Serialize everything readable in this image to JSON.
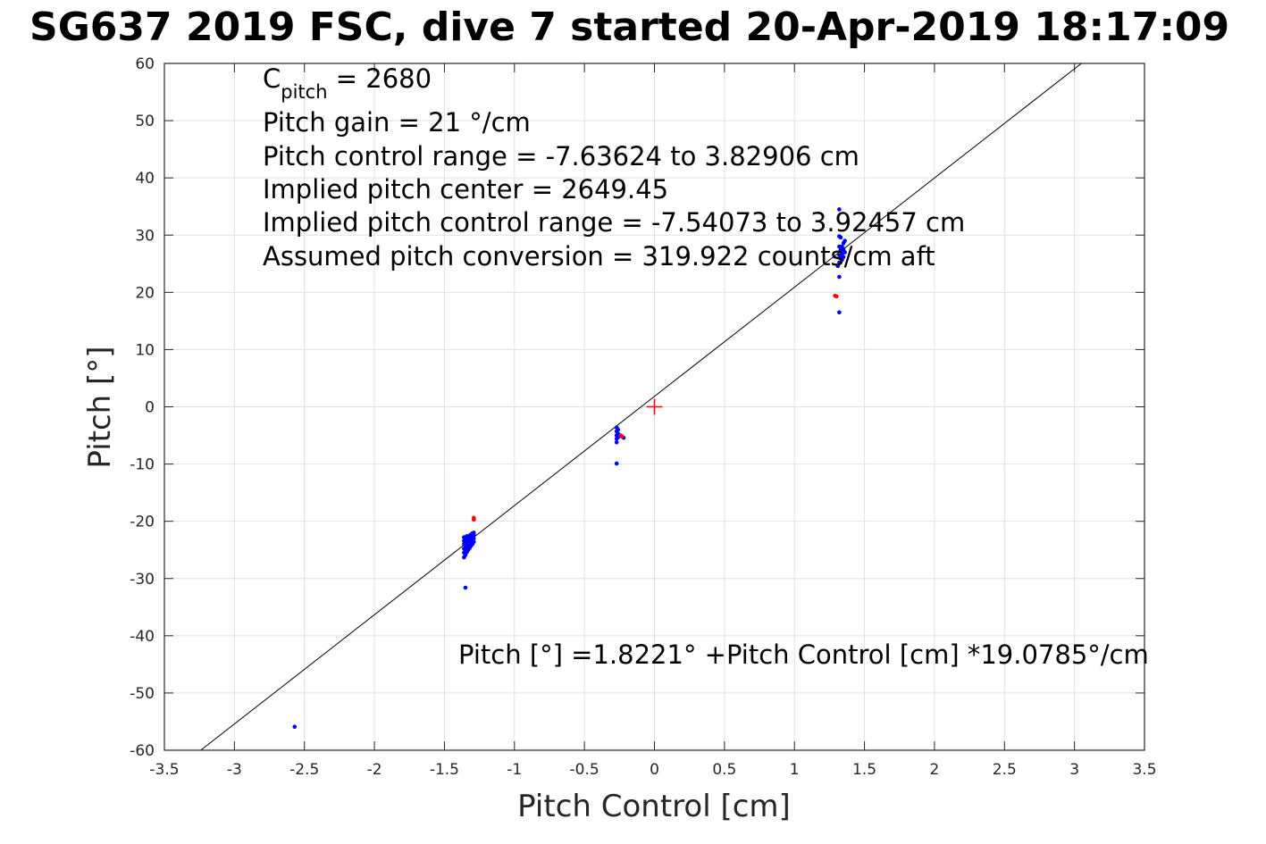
{
  "chart_data": {
    "type": "scatter",
    "title": "SG637 2019 FSC, dive 7 started 20-Apr-2019 18:17:09",
    "xlabel": "Pitch Control [cm]",
    "ylabel": "Pitch [°]",
    "xlim": [
      -3.5,
      3.5
    ],
    "ylim": [
      -60,
      60
    ],
    "xticks": [
      -3.5,
      -3,
      -2.5,
      -2,
      -1.5,
      -1,
      -0.5,
      0,
      0.5,
      1,
      1.5,
      2,
      2.5,
      3,
      3.5
    ],
    "yticks": [
      -60,
      -50,
      -40,
      -30,
      -20,
      -10,
      0,
      10,
      20,
      30,
      40,
      50,
      60
    ],
    "xtick_labels": [
      "-3.5",
      "-3",
      "-2.5",
      "-2",
      "-1.5",
      "-1",
      "-0.5",
      "0",
      "0.5",
      "1",
      "1.5",
      "2",
      "2.5",
      "3",
      "3.5"
    ],
    "ytick_labels": [
      "-60",
      "-50",
      "-40",
      "-30",
      "-20",
      "-10",
      "0",
      "10",
      "20",
      "30",
      "40",
      "50",
      "60"
    ],
    "grid": true,
    "annotations": {
      "c_pitch_main": "C",
      "c_pitch_sub": "pitch",
      "c_pitch_value": " = 2680",
      "lines": [
        "Pitch gain = 21 °/cm",
        "Pitch control range = -7.63624 to 3.82906 cm",
        "Implied pitch center = 2649.45",
        "Implied pitch control range = -7.54073 to 3.92457 cm",
        "Assumed pitch conversion = 319.922 counts/cm aft"
      ],
      "fit_text": "Pitch [°] =1.8221° +Pitch Control [cm] *19.0785°/cm"
    },
    "fit_line": {
      "intercept": 1.8221,
      "slope": 19.0785,
      "color": "#000000"
    },
    "center_marker": {
      "x": 0,
      "y": 0,
      "color": "#ff0000"
    },
    "series": [
      {
        "color": "#0000ff",
        "points": [
          [
            -2.57,
            -55.9
          ],
          [
            -1.35,
            -31.6
          ],
          [
            -1.36,
            -26.3
          ],
          [
            -1.36,
            -25.5
          ],
          [
            -1.36,
            -24.8
          ],
          [
            -1.36,
            -24.0
          ],
          [
            -1.36,
            -23.4
          ],
          [
            -1.36,
            -22.8
          ],
          [
            -1.35,
            -25.9
          ],
          [
            -1.35,
            -25.1
          ],
          [
            -1.35,
            -24.4
          ],
          [
            -1.35,
            -23.7
          ],
          [
            -1.35,
            -23.0
          ],
          [
            -1.34,
            -25.4
          ],
          [
            -1.34,
            -24.6
          ],
          [
            -1.34,
            -23.9
          ],
          [
            -1.34,
            -23.2
          ],
          [
            -1.34,
            -22.6
          ],
          [
            -1.33,
            -25.0
          ],
          [
            -1.33,
            -24.2
          ],
          [
            -1.33,
            -23.5
          ],
          [
            -1.33,
            -22.8
          ],
          [
            -1.32,
            -24.7
          ],
          [
            -1.32,
            -23.9
          ],
          [
            -1.32,
            -23.2
          ],
          [
            -1.32,
            -22.5
          ],
          [
            -1.31,
            -24.3
          ],
          [
            -1.31,
            -23.6
          ],
          [
            -1.31,
            -22.9
          ],
          [
            -1.31,
            -22.3
          ],
          [
            -1.3,
            -24.0
          ],
          [
            -1.3,
            -23.3
          ],
          [
            -1.3,
            -22.6
          ],
          [
            -1.3,
            -22.1
          ],
          [
            -1.29,
            -23.6
          ],
          [
            -1.29,
            -23.0
          ],
          [
            -1.29,
            -22.4
          ],
          [
            -1.29,
            -22.0
          ],
          [
            -0.27,
            -3.6
          ],
          [
            -0.27,
            -4.3
          ],
          [
            -0.27,
            -5.0
          ],
          [
            -0.27,
            -5.6
          ],
          [
            -0.27,
            -6.2
          ],
          [
            -0.27,
            -9.9
          ],
          [
            -0.26,
            -4.0
          ],
          [
            -0.26,
            -4.7
          ],
          [
            -0.26,
            -5.3
          ],
          [
            -0.25,
            -5.1
          ],
          [
            -0.23,
            -5.2
          ],
          [
            -0.22,
            -5.4
          ],
          [
            1.32,
            34.5
          ],
          [
            1.32,
            29.8
          ],
          [
            1.32,
            28.0
          ],
          [
            1.32,
            26.5
          ],
          [
            1.32,
            25.2
          ],
          [
            1.32,
            22.7
          ],
          [
            1.32,
            16.5
          ],
          [
            1.31,
            24.6
          ],
          [
            1.33,
            27.4
          ],
          [
            1.33,
            26.3
          ],
          [
            1.33,
            29.6
          ],
          [
            1.34,
            28.0
          ],
          [
            1.34,
            26.8
          ],
          [
            1.34,
            25.7
          ],
          [
            1.35,
            27.5
          ],
          [
            1.35,
            26.2
          ],
          [
            1.35,
            28.6
          ],
          [
            1.36,
            27.0
          ],
          [
            1.36,
            29.0
          ]
        ]
      },
      {
        "color": "#ff0000",
        "points": [
          [
            -1.29,
            -19.4
          ],
          [
            -1.29,
            -19.7
          ],
          [
            -0.24,
            -5.0
          ],
          [
            -0.23,
            -5.2
          ],
          [
            1.29,
            19.4
          ],
          [
            1.3,
            19.3
          ]
        ]
      }
    ]
  }
}
